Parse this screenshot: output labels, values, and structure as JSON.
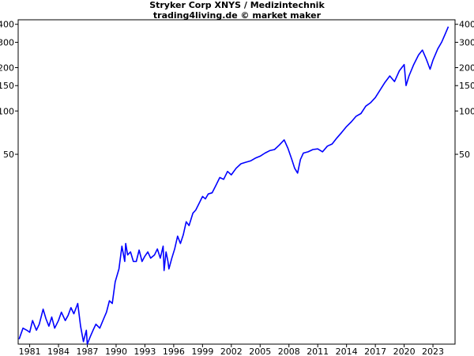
{
  "chart_data": {
    "type": "line",
    "title": "Stryker Corp XNYS / Medizintechnik",
    "subtitle": "trading4living.de © market maker",
    "xlabel": "",
    "ylabel": "",
    "y_scale": "log",
    "ylim": [
      2.4,
      430
    ],
    "xlim": [
      1979.8,
      2025.3
    ],
    "grid": false,
    "legend": "none",
    "line_color": "#0000ff",
    "x_ticks": [
      1981,
      1984,
      1987,
      1990,
      1993,
      1996,
      1999,
      2002,
      2005,
      2008,
      2011,
      2014,
      2017,
      2020,
      2023
    ],
    "y_ticks": [
      50,
      100,
      150,
      200,
      300,
      400
    ],
    "series": [
      {
        "name": "",
        "x": [
          1979.9,
          1980.3,
          1980.7,
          1981.0,
          1981.3,
          1981.7,
          1982.0,
          1982.4,
          1982.7,
          1983.0,
          1983.3,
          1983.6,
          1984.0,
          1984.3,
          1984.7,
          1985.0,
          1985.3,
          1985.6,
          1986.0,
          1986.3,
          1986.6,
          1986.9,
          1987.0,
          1987.3,
          1987.6,
          1987.9,
          1988.3,
          1988.7,
          1989.0,
          1989.3,
          1989.6,
          1989.9,
          1990.3,
          1990.6,
          1990.9,
          1991.0,
          1991.2,
          1991.5,
          1991.8,
          1992.1,
          1992.4,
          1992.7,
          1993.0,
          1993.3,
          1993.6,
          1994.0,
          1994.3,
          1994.6,
          1994.9,
          1995.0,
          1995.2,
          1995.4,
          1995.5,
          1995.8,
          1996.1,
          1996.4,
          1996.7,
          1997.0,
          1997.3,
          1997.6,
          1998.0,
          1998.3,
          1998.6,
          1999.0,
          1999.3,
          1999.6,
          2000.0,
          2000.4,
          2000.8,
          2001.2,
          2001.6,
          2002.0,
          2002.5,
          2003.0,
          2003.5,
          2004.0,
          2004.5,
          2005.0,
          2005.5,
          2006.0,
          2006.5,
          2007.0,
          2007.5,
          2007.9,
          2008.3,
          2008.6,
          2008.9,
          2009.2,
          2009.5,
          2010.0,
          2010.5,
          2011.0,
          2011.5,
          2012.0,
          2012.5,
          2013.0,
          2013.5,
          2014.0,
          2014.5,
          2015.0,
          2015.5,
          2016.0,
          2016.5,
          2017.0,
          2017.5,
          2018.0,
          2018.5,
          2019.0,
          2019.5,
          2020.0,
          2020.2,
          2020.5,
          2021.0,
          2021.5,
          2021.9,
          2022.3,
          2022.7,
          2023.0,
          2023.5,
          2023.9,
          2024.3,
          2024.6
        ],
        "values": [
          2.6,
          3.1,
          3.0,
          2.9,
          3.5,
          3.0,
          3.3,
          4.2,
          3.6,
          3.2,
          3.7,
          3.1,
          3.5,
          4.0,
          3.5,
          3.8,
          4.3,
          3.9,
          4.6,
          3.2,
          2.5,
          3.0,
          2.4,
          2.7,
          3.0,
          3.3,
          3.1,
          3.6,
          4.0,
          4.8,
          4.6,
          6.5,
          8.0,
          11.5,
          9.0,
          12.0,
          10.0,
          10.5,
          9.0,
          9.0,
          10.8,
          9.0,
          9.8,
          10.5,
          9.5,
          10.0,
          11.0,
          9.5,
          11.5,
          7.8,
          10.5,
          9.0,
          8.0,
          9.5,
          11.0,
          13.5,
          12.0,
          13.8,
          17.0,
          16.0,
          19.5,
          20.5,
          22.5,
          25.5,
          24.5,
          26.5,
          27.0,
          30.5,
          34.5,
          33.5,
          38.0,
          36.0,
          40.0,
          43.0,
          44.0,
          45.0,
          47.0,
          48.5,
          51.0,
          53.0,
          54.0,
          58.0,
          63.0,
          55.0,
          46.0,
          40.0,
          37.0,
          46.0,
          51.0,
          52.0,
          54.0,
          54.5,
          52.0,
          57.0,
          59.0,
          65.0,
          71.0,
          78.0,
          84.0,
          92.0,
          96.0,
          108.0,
          114.0,
          124.0,
          140.0,
          158.0,
          175.0,
          160.0,
          190.0,
          210.0,
          150.0,
          175.0,
          210.0,
          245.0,
          265.0,
          230.0,
          195.0,
          225.0,
          270.0,
          300.0,
          345.0,
          385.0
        ]
      }
    ]
  }
}
